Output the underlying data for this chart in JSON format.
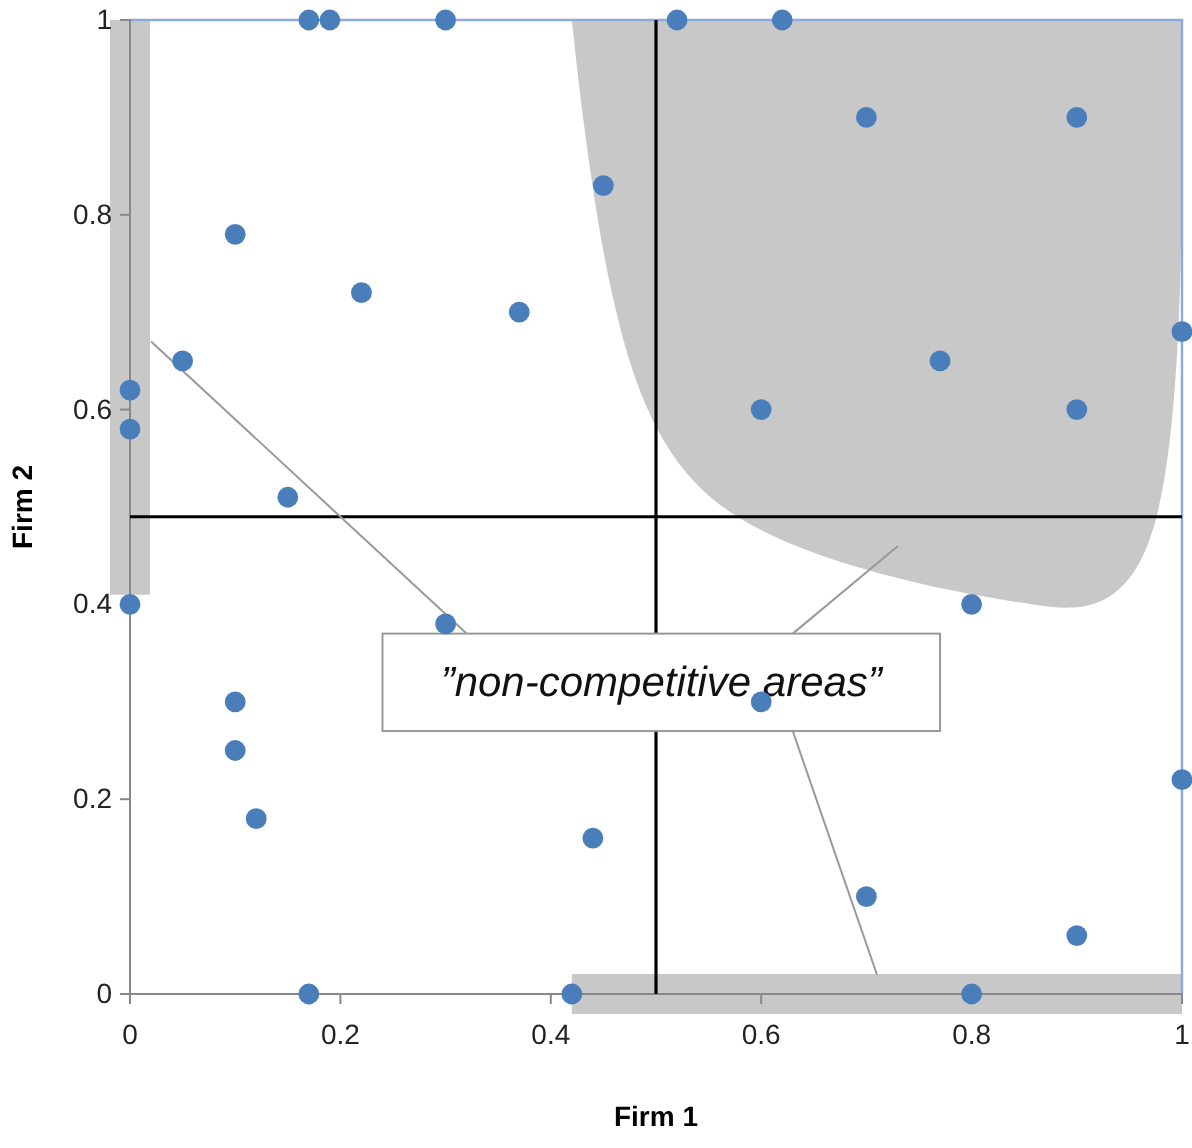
{
  "chart_data": {
    "type": "scatter",
    "xlabel": "Firm 1",
    "ylabel": "Firm 2",
    "xlim": [
      0,
      1
    ],
    "ylim": [
      0,
      1
    ],
    "xticks": [
      0,
      0.2,
      0.4,
      0.6,
      0.8,
      1
    ],
    "yticks": [
      0,
      0.2,
      0.4,
      0.6,
      0.8,
      1
    ],
    "grid": false,
    "marker": "circle",
    "series": [
      {
        "color": "#4a7ebb",
        "x": [
          0.17,
          0.19,
          0.3,
          0.52,
          0.62,
          0.7,
          0.9,
          0.45,
          0.1,
          0.22,
          0.37,
          0.77,
          1,
          0.05,
          0,
          0,
          0.6,
          0.9,
          0.15,
          0,
          0.8,
          0.3,
          0.1,
          0.6,
          0.1,
          0.12,
          0.44,
          1,
          0.7,
          0.9,
          0.17,
          0.42,
          0.8
        ],
        "values": [
          1,
          1,
          1,
          1,
          1,
          0.9,
          0.9,
          0.83,
          0.78,
          0.72,
          0.7,
          0.65,
          0.68,
          0.65,
          0.62,
          0.58,
          0.6,
          0.6,
          0.51,
          0.4,
          0.4,
          0.38,
          0.3,
          0.3,
          0.25,
          0.18,
          0.16,
          0.22,
          0.1,
          0.06,
          0,
          0,
          0
        ]
      }
    ],
    "ref_lines": [
      {
        "axis": "x",
        "value": 0.5,
        "color": "#000000"
      },
      {
        "axis": "y",
        "value": 0.49,
        "color": "#000000"
      }
    ],
    "annotations": [
      "”non-competitive areas”"
    ]
  }
}
